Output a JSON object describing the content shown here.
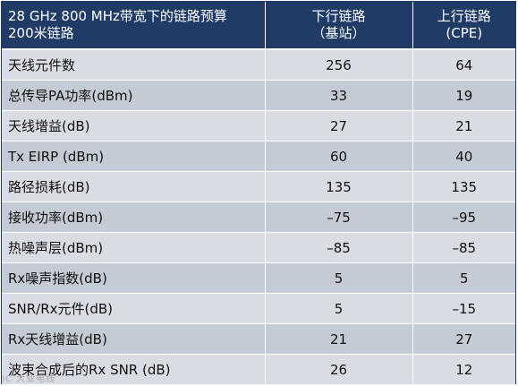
{
  "table": {
    "header": {
      "title_line1": "28 GHz 800 MHz带宽下的链路预算",
      "title_line2": "200米链路",
      "downlink_line1": "下行链路",
      "downlink_line2": "（基站）",
      "uplink_line1": "上行链路",
      "uplink_line2": "(CPE)"
    },
    "rows": [
      {
        "label": "天线元件数",
        "downlink": "256",
        "uplink": "64"
      },
      {
        "label": "总传导PA功率(dBm)",
        "downlink": "33",
        "uplink": "19"
      },
      {
        "label": "天线增益(dB)",
        "downlink": "27",
        "uplink": "21"
      },
      {
        "label": "Tx EIRP (dBm)",
        "downlink": "60",
        "uplink": "40"
      },
      {
        "label": "路径损耗(dB)",
        "downlink": "135",
        "uplink": "135"
      },
      {
        "label": "接收功率(dBm)",
        "downlink": "–75",
        "uplink": "–95"
      },
      {
        "label": "热噪声层(dBm)",
        "downlink": "–85",
        "uplink": "–85"
      },
      {
        "label": "Rx噪声指数(dB)",
        "downlink": "5",
        "uplink": "5"
      },
      {
        "label": "SNR/Rx元件(dB)",
        "downlink": "5",
        "uplink": "–15"
      },
      {
        "label": "Rx天线增益(dB)",
        "downlink": "21",
        "uplink": "27"
      },
      {
        "label": "波束合成后的Rx SNR (dB)",
        "downlink": "26",
        "uplink": "12"
      }
    ]
  },
  "colors": {
    "header_bg": "#1f3b66",
    "row_light": "#d9dde3",
    "row_dark": "#c4cbd4"
  },
  "watermark": {
    "text": "IC 大业电线"
  }
}
